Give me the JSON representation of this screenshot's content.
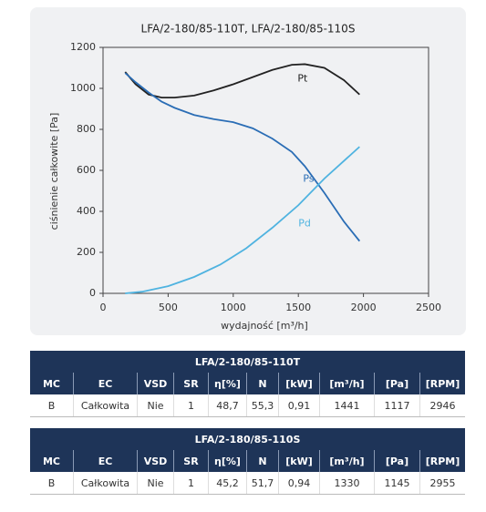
{
  "chart_data": {
    "type": "line",
    "title": "LFA/2-180/85-110T, LFA/2-180/85-110S",
    "x_label": "wydajność [m³/h]",
    "y_label": "ciśnienie całkowite [Pa]",
    "xlim": [
      0,
      2500
    ],
    "xticks": [
      0,
      500,
      1000,
      1500,
      2000,
      2500
    ],
    "ylim": [
      0,
      1200
    ],
    "yticks": [
      0,
      200,
      400,
      600,
      800,
      1000,
      1200
    ],
    "grid": false,
    "series": [
      {
        "name": "Pt",
        "color": "#222222",
        "x": [
          170,
          250,
          350,
          450,
          550,
          700,
          850,
          1000,
          1150,
          1300,
          1450,
          1550,
          1700,
          1850,
          1970
        ],
        "values": [
          1080,
          1020,
          970,
          955,
          955,
          965,
          990,
          1020,
          1055,
          1090,
          1115,
          1118,
          1100,
          1040,
          970
        ]
      },
      {
        "name": "Ps",
        "color": "#2a6db5",
        "x": [
          170,
          250,
          350,
          450,
          550,
          700,
          850,
          1000,
          1150,
          1300,
          1450,
          1550,
          1700,
          1850,
          1970
        ],
        "values": [
          1075,
          1030,
          980,
          935,
          905,
          870,
          850,
          835,
          805,
          755,
          690,
          620,
          490,
          350,
          255
        ]
      },
      {
        "name": "Pd",
        "color": "#4fb3e0",
        "x": [
          170,
          300,
          500,
          700,
          900,
          1100,
          1300,
          1500,
          1700,
          1970
        ],
        "values": [
          0,
          8,
          35,
          80,
          140,
          220,
          320,
          430,
          560,
          715
        ]
      }
    ]
  },
  "tables": [
    {
      "title": "LFA/2-180/85-110T",
      "columns": [
        "MC",
        "EC",
        "VSD",
        "SR",
        "η[%]",
        "N",
        "[kW]",
        "[m³/h]",
        "[Pa]",
        "[RPM]"
      ],
      "rows": [
        [
          "B",
          "Całkowita",
          "Nie",
          "1",
          "48,7",
          "55,3",
          "0,91",
          "1441",
          "1117",
          "2946"
        ]
      ]
    },
    {
      "title": "LFA/2-180/85-110S",
      "columns": [
        "MC",
        "EC",
        "VSD",
        "SR",
        "η[%]",
        "N",
        "[kW]",
        "[m³/h]",
        "[Pa]",
        "[RPM]"
      ],
      "rows": [
        [
          "B",
          "Całkowita",
          "Nie",
          "1",
          "45,2",
          "51,7",
          "0,94",
          "1330",
          "1145",
          "2955"
        ]
      ]
    }
  ]
}
